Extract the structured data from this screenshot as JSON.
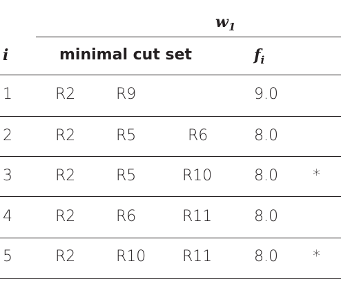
{
  "header": {
    "weight_label": "w",
    "weight_sub": "1",
    "col_index": "i",
    "col_cutset": "minimal cut set",
    "col_f": "f",
    "col_f_sub": "i"
  },
  "rows": [
    {
      "i": "1",
      "c1": "R2",
      "c2": "R9",
      "c3": "",
      "f": "9.0",
      "mark": ""
    },
    {
      "i": "2",
      "c1": "R2",
      "c2": "R5",
      "c3": "R6",
      "f": "8.0",
      "mark": ""
    },
    {
      "i": "3",
      "c1": "R2",
      "c2": "R5",
      "c3": "R10",
      "f": "8.0",
      "mark": "*"
    },
    {
      "i": "4",
      "c1": "R2",
      "c2": "R6",
      "c3": "R11",
      "f": "8.0",
      "mark": ""
    },
    {
      "i": "5",
      "c1": "R2",
      "c2": "R10",
      "c3": "R11",
      "f": "8.0",
      "mark": "*"
    }
  ]
}
